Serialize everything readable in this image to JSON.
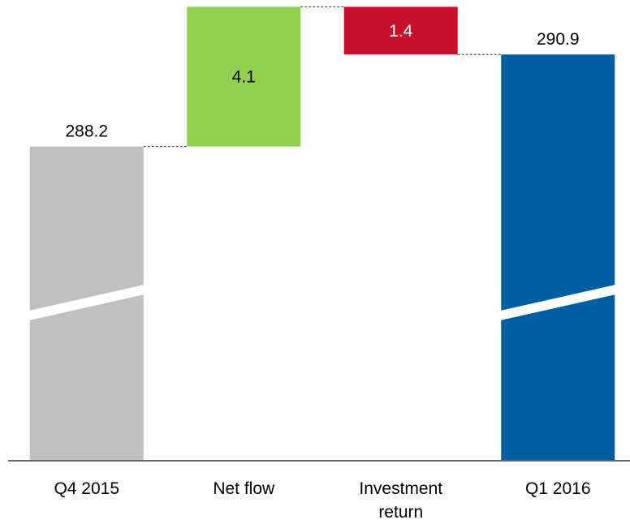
{
  "chart_data": {
    "type": "waterfall",
    "categories": [
      "Q4 2015",
      "Net flow",
      "Investment return",
      "Q1 2016"
    ],
    "values": [
      288.2,
      4.1,
      -1.4,
      290.9
    ],
    "value_labels": [
      "288.2",
      "4.1",
      "1.4",
      "290.9"
    ],
    "colors": [
      "#c0c0c0",
      "#92d050",
      "#c8102e",
      "#005ea2"
    ],
    "ylim": [
      279,
      292.5
    ]
  }
}
